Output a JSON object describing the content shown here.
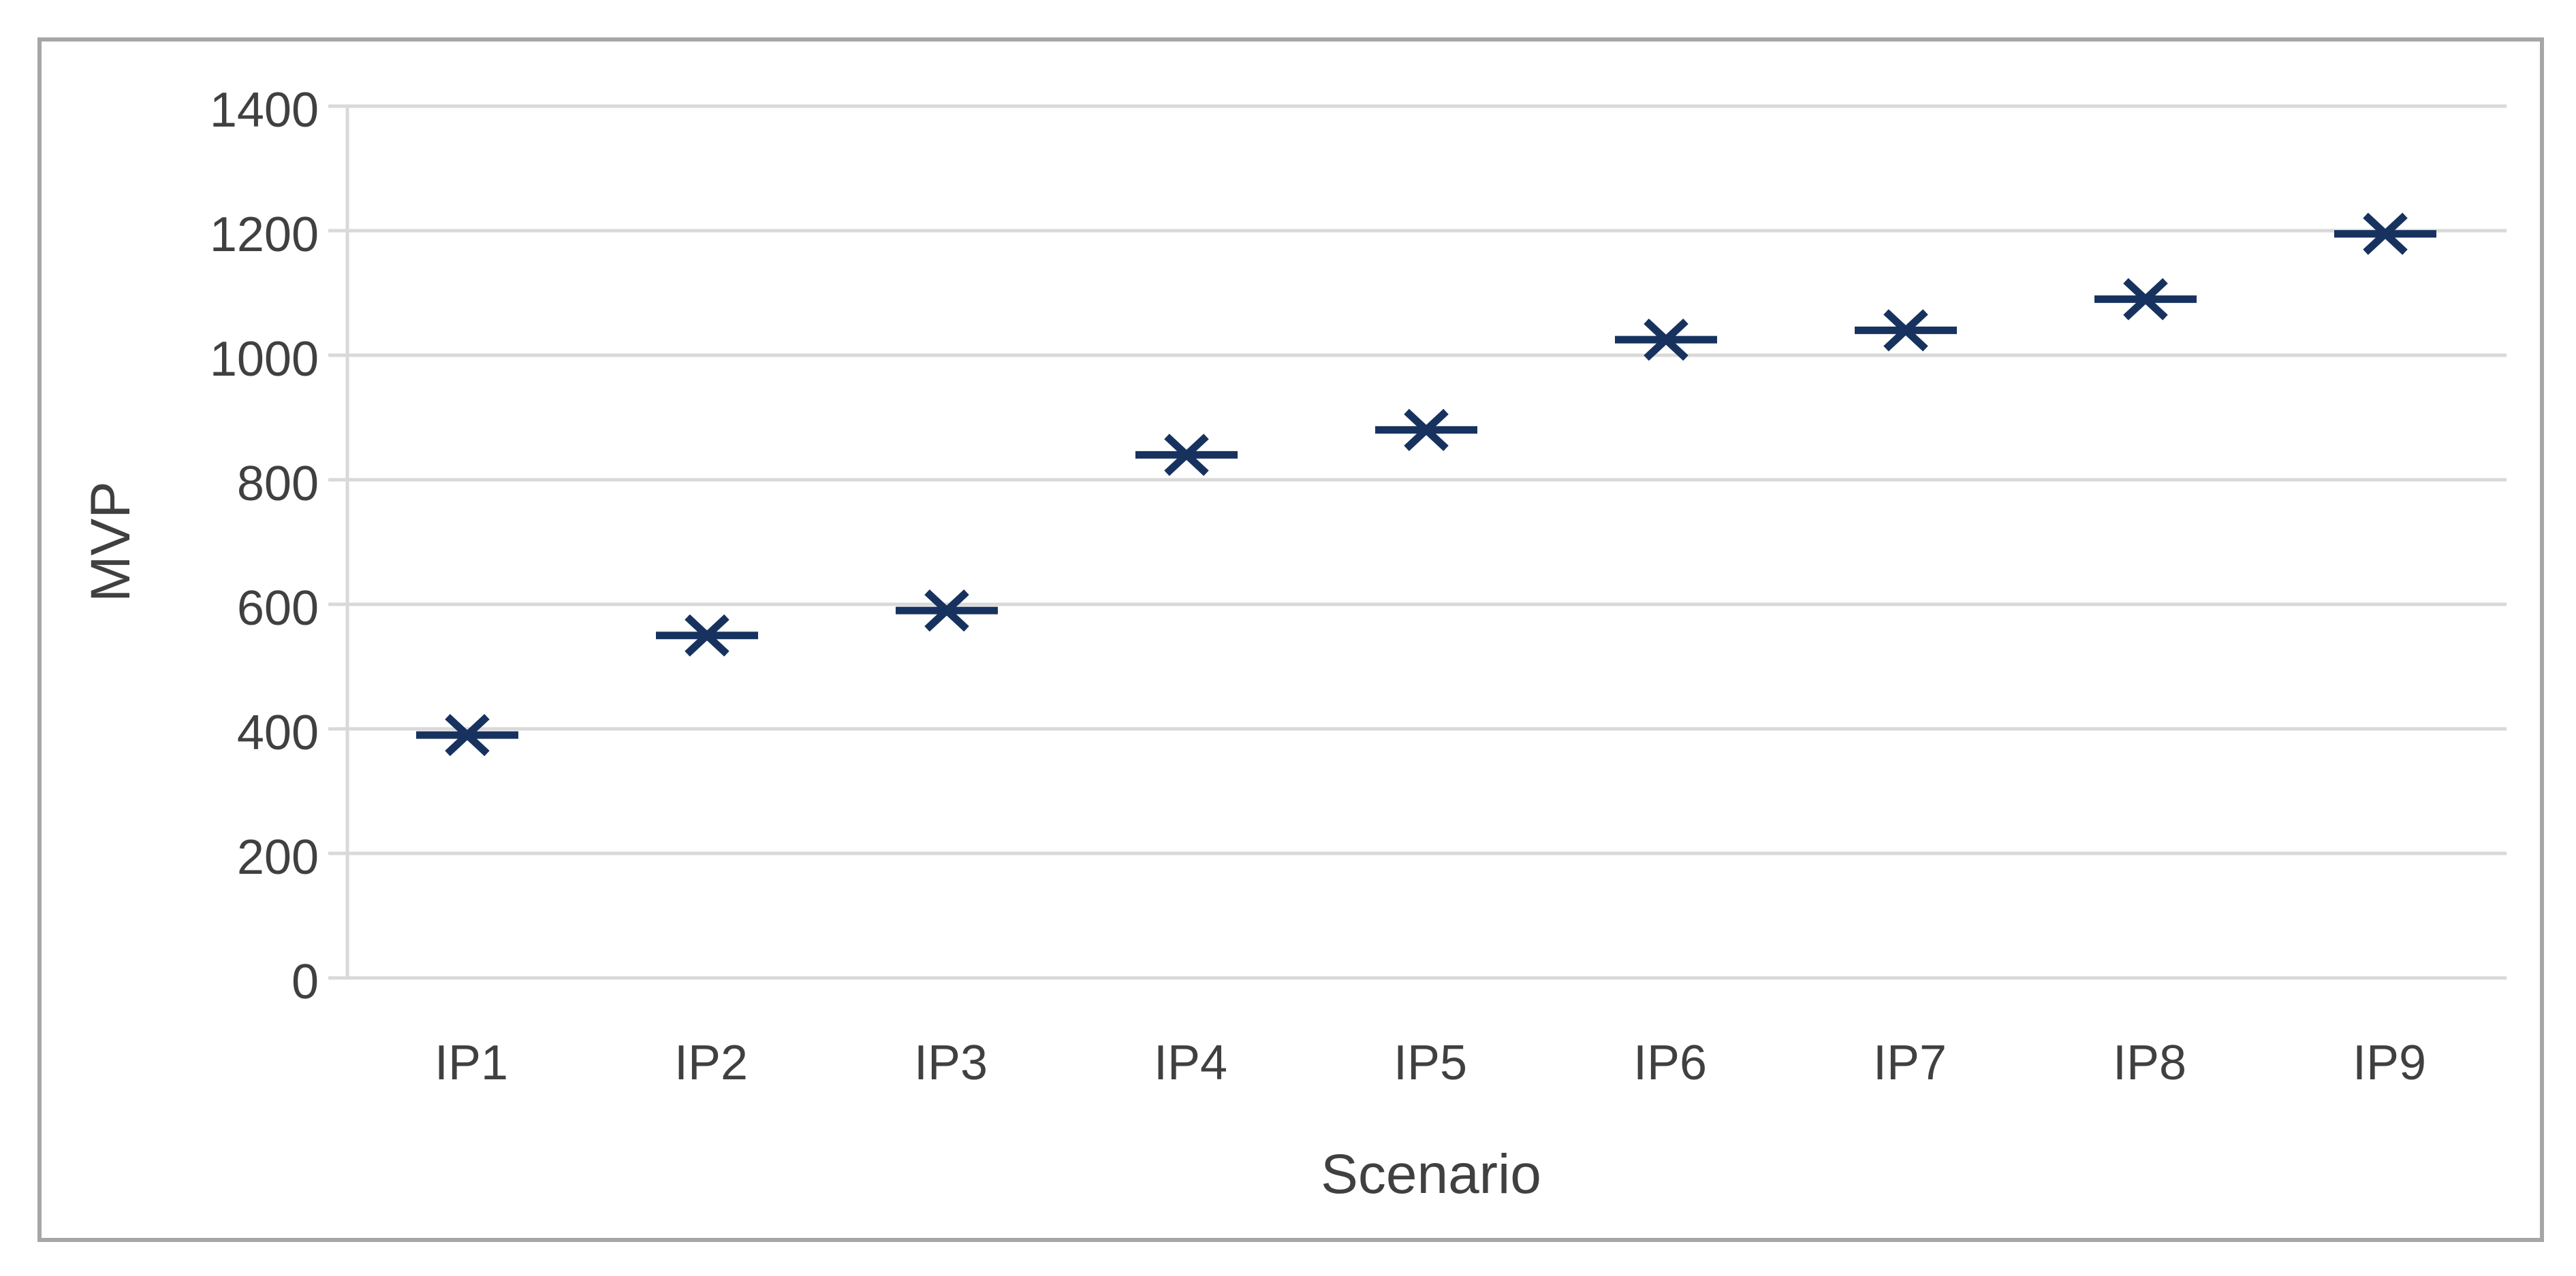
{
  "chart_data": {
    "type": "scatter",
    "title": "",
    "xlabel": "Scenario",
    "ylabel": "MVP",
    "categories": [
      "IP1",
      "IP2",
      "IP3",
      "IP4",
      "IP5",
      "IP6",
      "IP7",
      "IP8",
      "IP9"
    ],
    "series": [
      {
        "name": "MVP",
        "marker": "x-with-horizontal-dash",
        "color": "#17325e",
        "values": [
          390,
          550,
          590,
          840,
          880,
          1025,
          1040,
          1090,
          1195
        ]
      }
    ],
    "ylim": [
      0,
      1400
    ],
    "ytick_step": 200,
    "ytick_labels": [
      "0",
      "200",
      "400",
      "600",
      "800",
      "1000",
      "1200",
      "1400"
    ],
    "grid": "horizontal-only",
    "legend_position": "none",
    "colors": {
      "marker": "#17325e",
      "gridline": "#d9d9d9",
      "axis_line": "#d9d9d9",
      "tick_label": "#404040",
      "axis_title": "#404040",
      "figure_border": "#a6a6a6",
      "background": "#ffffff"
    }
  }
}
